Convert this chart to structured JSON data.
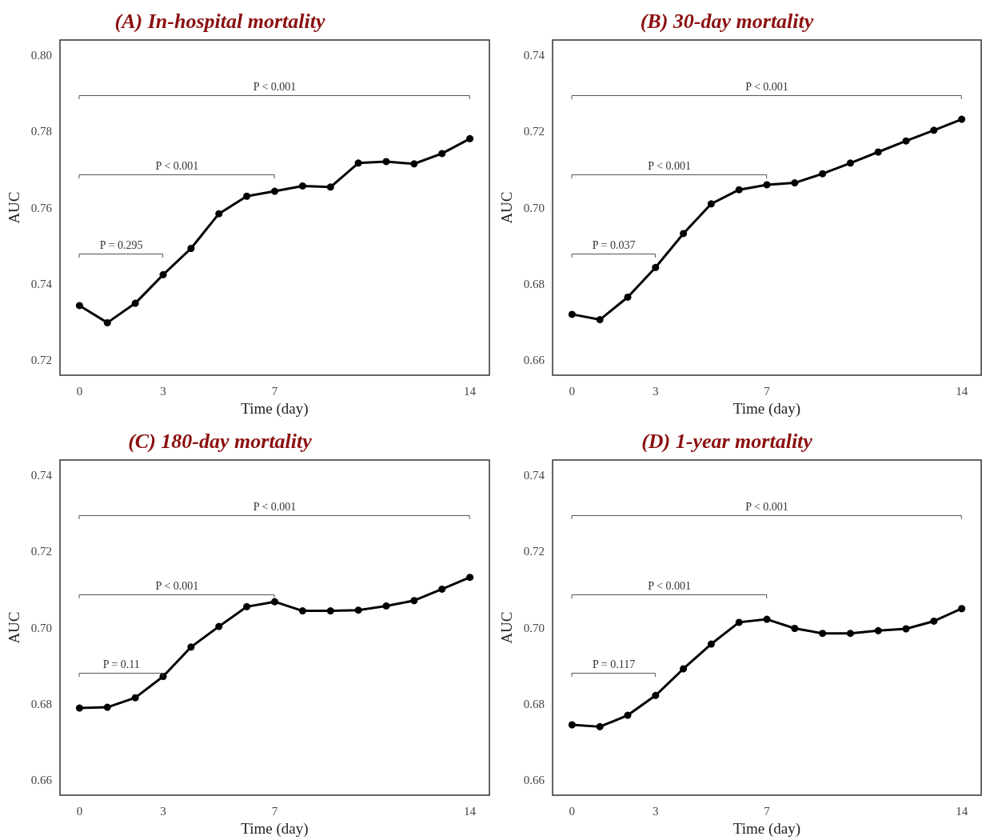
{
  "chart_data": [
    {
      "type": "line",
      "title": "(A) In-hospital mortality",
      "xlabel": "Time (day)",
      "ylabel": "AUC",
      "marker": "circle",
      "line_style": "solid",
      "x": [
        0,
        1,
        2,
        3,
        4,
        5,
        6,
        7,
        8,
        9,
        10,
        11,
        12,
        13,
        14
      ],
      "series": [
        {
          "color": "#000000",
          "values": [
            0.7343,
            0.7298,
            0.7349,
            0.7424,
            0.7493,
            0.7584,
            0.763,
            0.7643,
            0.7657,
            0.7654,
            0.7717,
            0.7721,
            0.7715,
            0.7742,
            0.7781
          ]
        }
      ],
      "xlim": [
        -0.7,
        14.7
      ],
      "xticks": [
        0,
        3,
        7,
        14
      ],
      "ylim": [
        0.716,
        0.804
      ],
      "yticks": [
        {
          "value": 0.72,
          "label": "0.72"
        },
        {
          "value": 0.74,
          "label": "0.74"
        },
        {
          "value": 0.76,
          "label": "0.76"
        },
        {
          "value": 0.78,
          "label": "0.78"
        },
        {
          "value": 0.8,
          "label": "0.80"
        }
      ],
      "annotations": [
        "P < 0.001",
        "P < 0.001",
        "P = 0.295"
      ]
    },
    {
      "type": "line",
      "title": "(B) 30-day mortality",
      "xlabel": "Time (day)",
      "ylabel": "AUC",
      "marker": "circle",
      "line_style": "solid",
      "x": [
        0,
        1,
        2,
        3,
        4,
        5,
        6,
        7,
        8,
        9,
        10,
        11,
        12,
        13,
        14
      ],
      "series": [
        {
          "color": "#000000",
          "values": [
            0.672,
            0.6706,
            0.6765,
            0.6843,
            0.6932,
            0.701,
            0.7047,
            0.706,
            0.7065,
            0.7089,
            0.7117,
            0.7146,
            0.7175,
            0.7203,
            0.7232
          ]
        }
      ],
      "xlim": [
        -0.7,
        14.7
      ],
      "xticks": [
        0,
        3,
        7,
        14
      ],
      "ylim": [
        0.656,
        0.744
      ],
      "yticks": [
        {
          "value": 0.66,
          "label": "0.66"
        },
        {
          "value": 0.68,
          "label": "0.68"
        },
        {
          "value": 0.7,
          "label": "0.70"
        },
        {
          "value": 0.72,
          "label": "0.72"
        },
        {
          "value": 0.74,
          "label": "0.74"
        }
      ],
      "annotations": [
        "P < 0.001",
        "P < 0.001",
        "P = 0.037"
      ]
    },
    {
      "type": "line",
      "title": "(C) 180-day mortality",
      "xlabel": "Time (day)",
      "ylabel": "AUC",
      "marker": "circle",
      "line_style": "solid",
      "x": [
        0,
        1,
        2,
        3,
        4,
        5,
        6,
        7,
        8,
        9,
        10,
        11,
        12,
        13,
        14
      ],
      "series": [
        {
          "color": "#000000",
          "values": [
            0.6789,
            0.6791,
            0.6816,
            0.6872,
            0.6949,
            0.7003,
            0.7055,
            0.7068,
            0.7044,
            0.7044,
            0.7046,
            0.7057,
            0.7071,
            0.7101,
            0.7132
          ]
        }
      ],
      "xlim": [
        -0.7,
        14.7
      ],
      "xticks": [
        0,
        3,
        7,
        14
      ],
      "ylim": [
        0.656,
        0.744
      ],
      "yticks": [
        {
          "value": 0.66,
          "label": "0.66"
        },
        {
          "value": 0.68,
          "label": "0.68"
        },
        {
          "value": 0.7,
          "label": "0.70"
        },
        {
          "value": 0.72,
          "label": "0.72"
        },
        {
          "value": 0.74,
          "label": "0.74"
        }
      ],
      "annotations": [
        "P < 0.001",
        "P < 0.001",
        "P = 0.11"
      ]
    },
    {
      "type": "line",
      "title": "(D) 1-year mortality",
      "xlabel": "Time (day)",
      "ylabel": "AUC",
      "marker": "circle",
      "line_style": "solid",
      "x": [
        0,
        1,
        2,
        3,
        4,
        5,
        6,
        7,
        8,
        9,
        10,
        11,
        12,
        13,
        14
      ],
      "series": [
        {
          "color": "#000000",
          "values": [
            0.6745,
            0.674,
            0.677,
            0.6822,
            0.6892,
            0.6957,
            0.7014,
            0.7022,
            0.6998,
            0.6985,
            0.6985,
            0.6992,
            0.6997,
            0.7017,
            0.705
          ]
        }
      ],
      "xlim": [
        -0.7,
        14.7
      ],
      "xticks": [
        0,
        3,
        7,
        14
      ],
      "ylim": [
        0.656,
        0.744
      ],
      "yticks": [
        {
          "value": 0.66,
          "label": "0.66"
        },
        {
          "value": 0.68,
          "label": "0.68"
        },
        {
          "value": 0.7,
          "label": "0.70"
        },
        {
          "value": 0.72,
          "label": "0.72"
        },
        {
          "value": 0.74,
          "label": "0.74"
        }
      ],
      "annotations": [
        "P < 0.001",
        "P < 0.001",
        "P = 0.117"
      ]
    }
  ]
}
